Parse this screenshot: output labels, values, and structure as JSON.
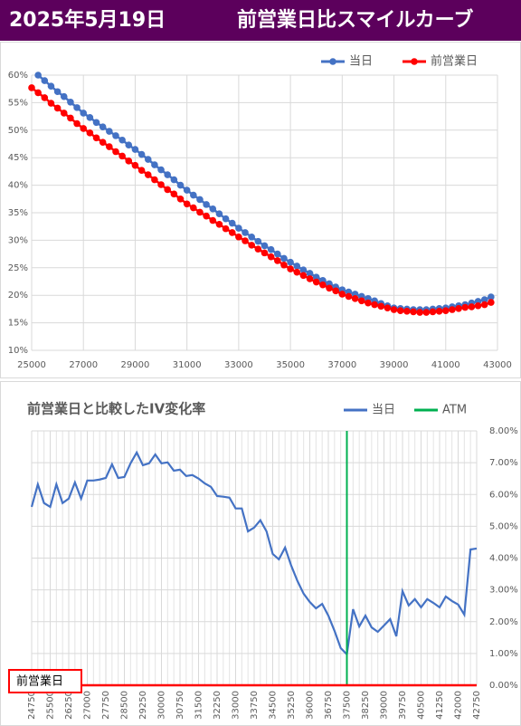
{
  "header": {
    "date": "2025年5月19日",
    "title": "前営業日比スマイルカーブ"
  },
  "chart_data": [
    {
      "type": "line",
      "markers": true,
      "grid": true,
      "legend": "top-right",
      "x": [
        25000,
        25250,
        25500,
        25750,
        26000,
        26250,
        26500,
        26750,
        27000,
        27250,
        27500,
        27750,
        28000,
        28250,
        28500,
        28750,
        29000,
        29250,
        29500,
        29750,
        30000,
        30250,
        30500,
        30750,
        31000,
        31250,
        31500,
        31750,
        32000,
        32250,
        32500,
        32750,
        33000,
        33250,
        33500,
        33750,
        34000,
        34250,
        34500,
        34750,
        35000,
        35250,
        35500,
        35750,
        36000,
        36250,
        36500,
        36750,
        37000,
        37250,
        37500,
        37750,
        38000,
        38250,
        38500,
        38750,
        39000,
        39250,
        39500,
        39750,
        40000,
        40250,
        40500,
        40750,
        41000,
        41250,
        41500,
        41750,
        42000,
        42250,
        42500,
        42750
      ],
      "xlim": [
        25000,
        43000
      ],
      "xticks": [
        25000,
        27000,
        29000,
        31000,
        33000,
        35000,
        37000,
        39000,
        41000,
        43000
      ],
      "ylim": [
        10,
        60
      ],
      "yticks": [
        {
          "value": 10,
          "label": "10%"
        },
        {
          "value": 15,
          "label": "15%"
        },
        {
          "value": 20,
          "label": "20%"
        },
        {
          "value": 25,
          "label": "25%"
        },
        {
          "value": 30,
          "label": "30%"
        },
        {
          "value": 35,
          "label": "35%"
        },
        {
          "value": 40,
          "label": "40%"
        },
        {
          "value": 45,
          "label": "45%"
        },
        {
          "value": 50,
          "label": "50%"
        },
        {
          "value": 55,
          "label": "55%"
        },
        {
          "value": 60,
          "label": "60%"
        }
      ],
      "series": [
        {
          "name": "当日",
          "color": "#4472c4",
          "values": [
            null,
            60,
            59.0,
            58.0,
            57.0,
            56.1,
            55.1,
            54.1,
            53.1,
            52.3,
            51.4,
            50.6,
            49.8,
            49.0,
            48.2,
            47.3,
            46.5,
            45.6,
            44.7,
            43.7,
            42.8,
            41.9,
            41.0,
            40.0,
            39.1,
            38.2,
            37.4,
            36.5,
            35.7,
            34.8,
            33.9,
            33.1,
            32.2,
            31.4,
            30.6,
            29.8,
            29.0,
            28.3,
            27.5,
            26.7,
            26.0,
            25.3,
            24.6,
            24.0,
            23.3,
            22.7,
            22.1,
            21.5,
            21.0,
            20.6,
            20.2,
            19.8,
            19.4,
            19.0,
            18.5,
            18.1,
            17.7,
            17.6,
            17.5,
            17.4,
            17.4,
            17.4,
            17.5,
            17.6,
            17.7,
            17.9,
            18.1,
            18.3,
            18.6,
            18.9,
            19.2,
            19.7
          ]
        },
        {
          "name": "前営業日",
          "color": "#ff0000",
          "values": [
            57.7,
            56.8,
            55.9,
            54.9,
            54.0,
            53.1,
            52.2,
            51.2,
            50.3,
            49.5,
            48.6,
            47.8,
            47.0,
            46.1,
            45.3,
            44.4,
            43.6,
            42.7,
            41.9,
            41.0,
            40.1,
            39.2,
            38.4,
            37.5,
            36.6,
            35.9,
            35.1,
            34.4,
            33.6,
            32.9,
            32.1,
            31.4,
            30.6,
            29.9,
            29.1,
            28.4,
            27.7,
            27.0,
            26.3,
            25.5,
            24.8,
            24.2,
            23.6,
            23.0,
            22.4,
            21.9,
            21.3,
            20.8,
            20.2,
            19.8,
            19.4,
            19.0,
            18.6,
            18.3,
            18.0,
            17.7,
            17.4,
            17.2,
            17.1,
            17.0,
            16.9,
            16.9,
            17.0,
            17.1,
            17.2,
            17.4,
            17.6,
            17.8,
            17.9,
            18.1,
            18.3,
            18.7
          ]
        }
      ]
    },
    {
      "type": "line",
      "markers": false,
      "grid": true,
      "grid_every_point": true,
      "y_axis_side": "right",
      "legend": "top-right",
      "title": "前営業日と比較したIV変化率",
      "x": [
        24750,
        25000,
        25250,
        25500,
        25750,
        26000,
        26250,
        26500,
        26750,
        27000,
        27250,
        27500,
        27750,
        28000,
        28250,
        28500,
        28750,
        29000,
        29250,
        29500,
        29750,
        30000,
        30250,
        30500,
        30750,
        31000,
        31250,
        31500,
        31750,
        32000,
        32250,
        32500,
        32750,
        33000,
        33250,
        33500,
        33750,
        34000,
        34250,
        34500,
        34750,
        35000,
        35250,
        35500,
        35750,
        36000,
        36250,
        36500,
        36750,
        37000,
        37250,
        37500,
        37750,
        38000,
        38250,
        38500,
        38750,
        39000,
        39250,
        39500,
        39750,
        40000,
        40250,
        40500,
        40750,
        41000,
        41250,
        41500,
        41750,
        42000,
        42250,
        42500,
        42750
      ],
      "xlim": [
        24750,
        42750
      ],
      "xticks": [
        24750,
        25500,
        26250,
        27000,
        27750,
        28500,
        29250,
        30000,
        30750,
        31500,
        32250,
        33000,
        33750,
        34500,
        35250,
        36000,
        36750,
        37500,
        38250,
        39000,
        39750,
        40500,
        41250,
        42000,
        42750
      ],
      "ylim": [
        0,
        8
      ],
      "yticks": [
        {
          "value": 0,
          "label": "0.00%"
        },
        {
          "value": 1,
          "label": "1.00%"
        },
        {
          "value": 2,
          "label": "2.00%"
        },
        {
          "value": 3,
          "label": "3.00%"
        },
        {
          "value": 4,
          "label": "4.00%"
        },
        {
          "value": 5,
          "label": "5.00%"
        },
        {
          "value": 6,
          "label": "6.00%"
        },
        {
          "value": 7,
          "label": "7.00%"
        },
        {
          "value": 8,
          "label": "8.00%"
        }
      ],
      "series": [
        {
          "name": "当日",
          "color": "#4472c4",
          "values": [
            5.61,
            6.32,
            5.73,
            5.61,
            6.32,
            5.73,
            5.87,
            6.38,
            5.87,
            6.44,
            6.44,
            6.47,
            6.52,
            6.95,
            6.52,
            6.55,
            6.98,
            7.32,
            6.92,
            6.98,
            7.26,
            6.98,
            7.01,
            6.75,
            6.78,
            6.58,
            6.61,
            6.5,
            6.35,
            6.24,
            5.95,
            5.93,
            5.9,
            5.56,
            5.56,
            4.84,
            4.96,
            5.19,
            4.84,
            4.13,
            3.96,
            4.33,
            3.76,
            3.28,
            2.88,
            2.62,
            2.42,
            2.56,
            2.19,
            1.71,
            1.17,
            0.97,
            2.39,
            1.85,
            2.19,
            1.82,
            1.68,
            1.88,
            2.08,
            1.54,
            2.96,
            2.51,
            2.71,
            2.45,
            2.71,
            2.59,
            2.45,
            2.79,
            2.65,
            2.54,
            2.22,
            4.27,
            4.3
          ]
        }
      ],
      "vlines": [
        {
          "name": "ATM",
          "color": "#00b050",
          "x": 37500
        }
      ],
      "baseline": {
        "label": "前営業日",
        "color": "#ff0000",
        "value": 0
      }
    }
  ]
}
